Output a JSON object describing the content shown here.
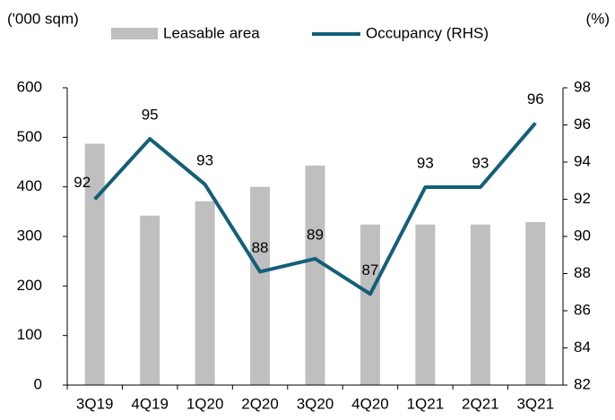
{
  "chart_data": {
    "type": "bar-line",
    "ylabel": "('000 sqm)",
    "y2label": "(%)",
    "categories": [
      "3Q19",
      "4Q19",
      "1Q20",
      "2Q20",
      "3Q20",
      "4Q20",
      "1Q21",
      "2Q21",
      "3Q21"
    ],
    "series": [
      {
        "name": "Leasable area",
        "type": "bar",
        "color": "#bfbfbf",
        "values": [
          487,
          342,
          371,
          400,
          443,
          324,
          324,
          324,
          329
        ]
      },
      {
        "name": "Occupancy (RHS)",
        "type": "line",
        "axis": "y2",
        "color": "#135f78",
        "values": [
          92.0,
          95.25,
          92.8,
          88.1,
          88.8,
          86.9,
          92.65,
          92.65,
          96.1
        ],
        "value_labels": [
          "92",
          "95",
          "93",
          "88",
          "89",
          "87",
          "93",
          "93",
          "96"
        ]
      }
    ],
    "ylim": [
      0,
      600
    ],
    "yticks": [
      0,
      100,
      200,
      300,
      400,
      500,
      600
    ],
    "y2lim": [
      82,
      98
    ],
    "y2ticks": [
      82,
      84,
      86,
      88,
      90,
      92,
      94,
      96,
      98
    ],
    "grid": false,
    "legend": "top"
  }
}
